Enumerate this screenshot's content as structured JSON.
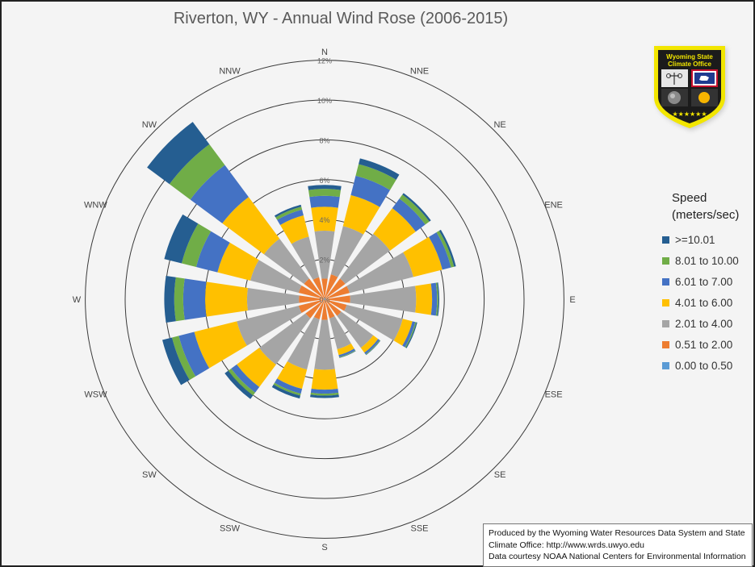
{
  "chart_data": {
    "type": "wind-rose",
    "title": "Riverton, WY - Annual Wind Rose (2006-2015)",
    "radial_axis": {
      "min": 0,
      "max": 12,
      "ticks": [
        0,
        2,
        4,
        6,
        8,
        10,
        12
      ],
      "tick_labels": [
        "0%",
        "2%",
        "4%",
        "6%",
        "8%",
        "10%",
        "12%"
      ]
    },
    "directions": [
      "N",
      "NNE",
      "NE",
      "ENE",
      "E",
      "ESE",
      "SE",
      "SSE",
      "S",
      "SSW",
      "SW",
      "WSW",
      "W",
      "WNW",
      "NW",
      "NNW"
    ],
    "direction_labels": [
      {
        "text": "N"
      },
      {
        "text": "NNE"
      },
      {
        "text": "NE"
      },
      {
        "text": "ENE"
      },
      {
        "text": "E"
      },
      {
        "text": "ESE"
      },
      {
        "text": "SE"
      },
      {
        "text": "SSE"
      },
      {
        "text": "S"
      },
      {
        "text": "SSW"
      },
      {
        "text": "SW"
      },
      {
        "text": "WSW"
      },
      {
        "text": "W"
      },
      {
        "text": "WNW"
      },
      {
        "text": "NW"
      },
      {
        "text": "NNW"
      }
    ],
    "legend_title": "Speed (meters/sec)",
    "series": [
      {
        "name": "0.00 to 0.50",
        "color": "#5b9bd5",
        "values": [
          0.04,
          0.04,
          0.04,
          0.04,
          0.04,
          0.04,
          0.04,
          0.04,
          0.04,
          0.04,
          0.04,
          0.04,
          0.04,
          0.04,
          0.04,
          0.04
        ]
      },
      {
        "name": "0.51 to 2.00",
        "color": "#ed7d31",
        "values": [
          1.0,
          1.25,
          1.25,
          1.25,
          1.25,
          1.1,
          1.0,
          0.95,
          1.0,
          1.0,
          1.15,
          1.3,
          1.25,
          1.3,
          1.25,
          1.1
        ]
      },
      {
        "name": "2.01 to 4.00",
        "color": "#a5a5a5",
        "values": [
          2.4,
          2.5,
          2.8,
          3.3,
          3.3,
          2.9,
          2.0,
          1.6,
          2.5,
          2.6,
          2.9,
          3.2,
          2.6,
          2.5,
          2.5,
          2.1
        ]
      },
      {
        "name": "4.01 to 6.00",
        "color": "#ffc000",
        "values": [
          1.2,
          1.6,
          1.6,
          1.5,
          0.8,
          0.5,
          0.3,
          0.3,
          1.0,
          1.0,
          1.4,
          2.2,
          2.1,
          1.7,
          2.6,
          1.1
        ]
      },
      {
        "name": "6.01 to 7.00",
        "color": "#4472c4",
        "values": [
          0.55,
          1.0,
          0.6,
          0.45,
          0.25,
          0.15,
          0.1,
          0.1,
          0.2,
          0.25,
          0.35,
          0.8,
          1.1,
          1.1,
          2.0,
          0.3
        ]
      },
      {
        "name": "8.01 to 10.00",
        "color": "#70ad47",
        "values": [
          0.35,
          0.6,
          0.25,
          0.15,
          0.06,
          0.05,
          0.03,
          0.03,
          0.1,
          0.1,
          0.18,
          0.35,
          0.45,
          0.75,
          1.3,
          0.15
        ]
      },
      {
        "name": ">=10.01",
        "color": "#255e91",
        "values": [
          0.2,
          0.3,
          0.1,
          0.1,
          0.05,
          0.05,
          0.02,
          0.02,
          0.12,
          0.15,
          0.22,
          0.5,
          0.5,
          0.9,
          1.4,
          0.1
        ]
      }
    ],
    "legend_order": [
      ">=10.01",
      "8.01 to 10.00",
      "6.01 to 7.00",
      "4.01 to 6.00",
      "2.01 to 4.00",
      "0.51 to 2.00",
      "0.00 to 0.50"
    ],
    "grid": true,
    "legend_position": "right"
  },
  "legend": {
    "title": "Speed (meters/sec)",
    "items": [
      {
        "label": ">=10.01",
        "color": "#255e91"
      },
      {
        "label": "8.01 to 10.00",
        "color": "#70ad47"
      },
      {
        "label": "6.01 to 7.00",
        "color": "#4472c4"
      },
      {
        "label": "4.01 to 6.00",
        "color": "#ffc000"
      },
      {
        "label": "2.01 to 4.00",
        "color": "#a5a5a5"
      },
      {
        "label": "0.51 to 2.00",
        "color": "#ed7d31"
      },
      {
        "label": "0.00 to 0.50",
        "color": "#5b9bd5"
      }
    ]
  },
  "logo": {
    "text_line1": "Wyoming State",
    "text_line2": "Climate Office",
    "colors": {
      "border": "#f2e600",
      "field": "#1b1b1b",
      "star": "#f2e600",
      "flag_blue": "#1f3b8f",
      "flag_red": "#c8102e",
      "sun": "#f7b500"
    }
  },
  "credits": {
    "line1": "Produced by the Wyoming Water Resources Data System and State",
    "line2": "Climate Office: http://www.wrds.uwyo.edu",
    "line3": "Data courtesy NOAA National Centers for Environmental Information"
  }
}
